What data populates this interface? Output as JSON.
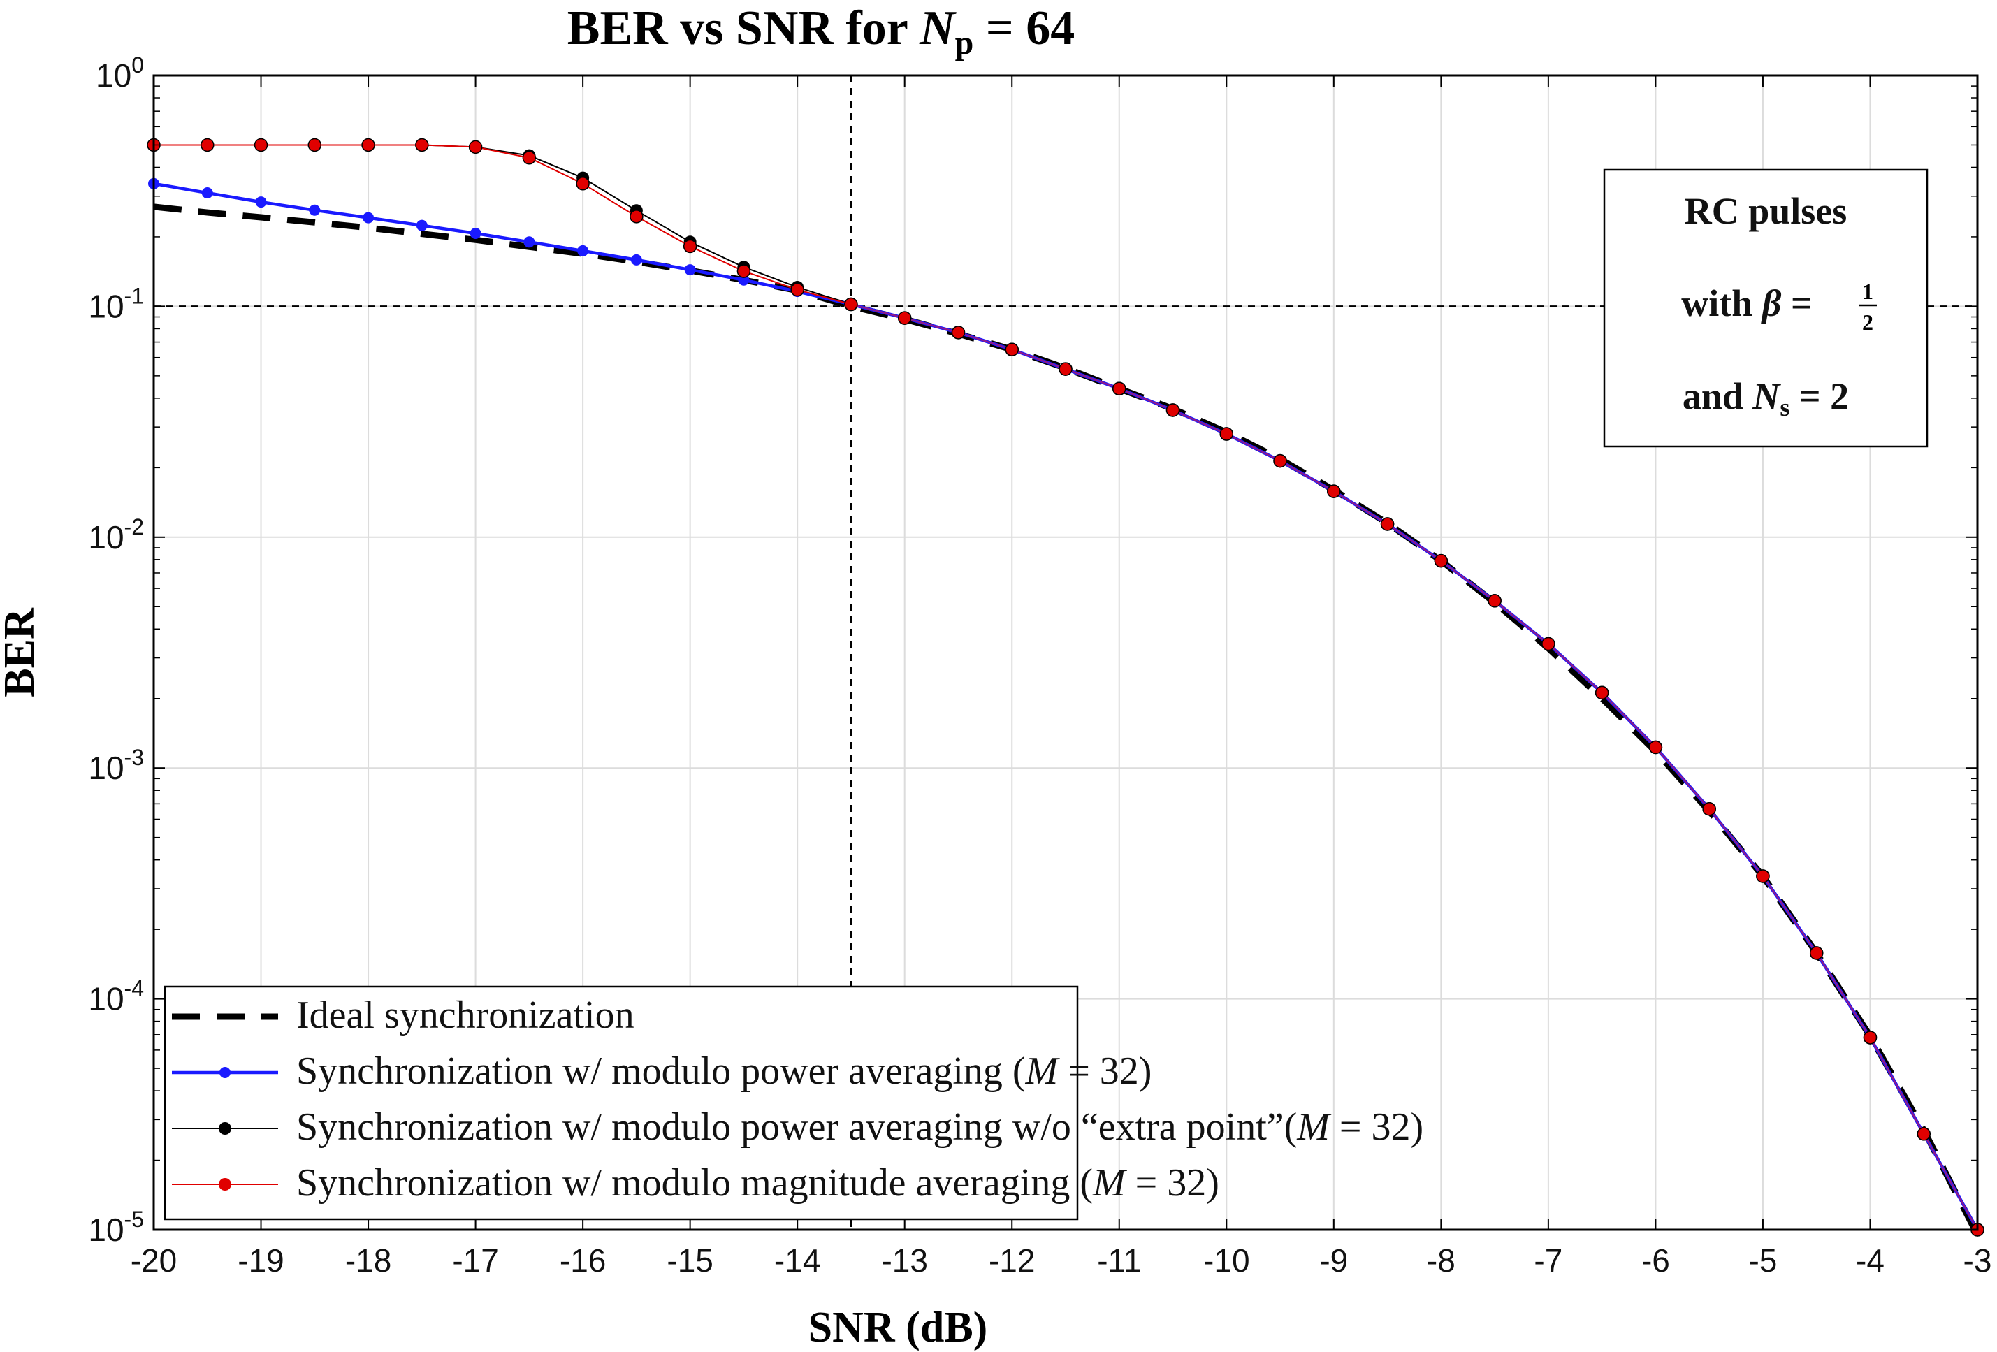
{
  "chart_data": {
    "type": "line",
    "title": "BER vs SNR for N_p = 64",
    "title_parts": {
      "prefix": "BER vs SNR for ",
      "var": "N",
      "sub": "p",
      "suffix": " = 64"
    },
    "xlabel": "SNR (dB)",
    "ylabel": "BER",
    "xlim": [
      -20,
      -3
    ],
    "ylim": [
      1e-05,
      1
    ],
    "yscale": "log",
    "grid": true,
    "x_ticks": [
      -20,
      -19,
      -18,
      -17,
      -16,
      -15,
      -14,
      -13,
      -12,
      -11,
      -10,
      -9,
      -8,
      -7,
      -6,
      -5,
      -4,
      -3
    ],
    "x_tick_labels": [
      "-20",
      "-19",
      "-18",
      "-17",
      "-16",
      "-15",
      "-14",
      "-13",
      "-12",
      "-11",
      "-10",
      "-9",
      "-8",
      "-7",
      "-6",
      "-5",
      "-4",
      "-3"
    ],
    "y_ticks": [
      {
        "value": 1,
        "base": "10",
        "exp": "0"
      },
      {
        "value": 0.1,
        "base": "10",
        "exp": "-1"
      },
      {
        "value": 0.01,
        "base": "10",
        "exp": "-2"
      },
      {
        "value": 0.001,
        "base": "10",
        "exp": "-3"
      },
      {
        "value": 0.0001,
        "base": "10",
        "exp": "-4"
      },
      {
        "value": 1e-05,
        "base": "10",
        "exp": "-5"
      }
    ],
    "reference_lines": {
      "x": -13.5,
      "y": 0.1
    },
    "x": [
      -20,
      -19.5,
      -19,
      -18.5,
      -18,
      -17.5,
      -17,
      -16.5,
      -16,
      -15.5,
      -15,
      -14.5,
      -14,
      -13.5,
      -13,
      -12.5,
      -12,
      -11.5,
      -11,
      -10.5,
      -10,
      -9.5,
      -9,
      -8.5,
      -8,
      -7.5,
      -7,
      -6.5,
      -6,
      -5.5,
      -5,
      -4.5,
      -4,
      -3.5,
      -3
    ],
    "series": [
      {
        "name": "Ideal synchronization",
        "color": "#000000",
        "style": "dashed",
        "values": [
          0.27,
          0.255,
          0.243,
          0.231,
          0.219,
          0.206,
          0.194,
          0.181,
          0.169,
          0.156,
          0.143,
          0.13,
          0.117,
          0.1,
          0.088,
          0.076,
          0.065,
          0.054,
          0.044,
          0.036,
          0.0285,
          0.0218,
          0.016,
          0.0115,
          0.0079,
          0.0052,
          0.0033,
          0.002,
          0.00118,
          0.00065,
          0.00034,
          0.000158,
          6.9e-05,
          2.7e-05,
          9.5e-06
        ]
      },
      {
        "name": "Synchronization w/ modulo power averaging (M=32)",
        "color": "#1a1aff",
        "style": "solid-marker",
        "values": [
          0.34,
          0.31,
          0.283,
          0.261,
          0.242,
          0.224,
          0.207,
          0.19,
          0.174,
          0.159,
          0.144,
          0.13,
          0.116,
          0.102,
          0.089,
          0.077,
          0.065,
          0.0535,
          0.044,
          0.0355,
          0.028,
          0.0214,
          0.0158,
          0.0114,
          0.0079,
          0.0053,
          0.00345,
          0.00212,
          0.00123,
          0.000665,
          0.00034,
          0.000158,
          6.8e-05,
          2.6e-05,
          1e-05
        ]
      },
      {
        "name": "Synchronization w/ modulo power averaging w/o “extra point”(M=32)",
        "color": "#000000",
        "style": "thin-marker",
        "values": [
          0.5,
          0.5,
          0.5,
          0.5,
          0.5,
          0.5,
          0.49,
          0.45,
          0.36,
          0.26,
          0.19,
          0.148,
          0.121,
          0.102,
          0.089,
          0.077,
          0.065,
          0.0535,
          0.044,
          0.0355,
          0.028,
          0.0214,
          0.0158,
          0.0114,
          0.0079,
          0.0053,
          0.00345,
          0.00212,
          0.00123,
          0.000665,
          0.00034,
          0.000158,
          6.8e-05,
          2.6e-05,
          1e-05
        ]
      },
      {
        "name": "Synchronization w/ modulo magnitude averaging (M=32)",
        "color": "#e00000",
        "style": "thin-marker",
        "values": [
          0.5,
          0.5,
          0.5,
          0.5,
          0.5,
          0.5,
          0.49,
          0.44,
          0.34,
          0.245,
          0.182,
          0.142,
          0.118,
          0.102,
          0.089,
          0.077,
          0.065,
          0.0535,
          0.044,
          0.0355,
          0.028,
          0.0214,
          0.0158,
          0.0114,
          0.0079,
          0.0053,
          0.00345,
          0.00212,
          0.00123,
          0.000665,
          0.00034,
          0.000158,
          6.8e-05,
          2.6e-05,
          1e-05
        ]
      }
    ],
    "legend": {
      "position": "bottom-left",
      "entries": [
        {
          "pre": "Ideal synchronization",
          "var": "",
          "post": ""
        },
        {
          "pre": "Synchronization w/ modulo power averaging (",
          "var": "M",
          "post": " = 32)"
        },
        {
          "pre": "Synchronization w/ modulo power averaging w/o “extra point”(",
          "var": "M",
          "post": " = 32)"
        },
        {
          "pre": "Synchronization w/ modulo magnitude averaging (",
          "var": "M",
          "post": " = 32)"
        }
      ]
    },
    "annotation": {
      "position": "top-right",
      "line1": "RC pulses",
      "line2_pre": "with ",
      "line2_var": "β",
      "line2_eq": " = ",
      "line2_num": "1",
      "line2_den": "2",
      "line3_pre": "and ",
      "line3_var": "N",
      "line3_sub": "s",
      "line3_eq": " = 2"
    }
  }
}
